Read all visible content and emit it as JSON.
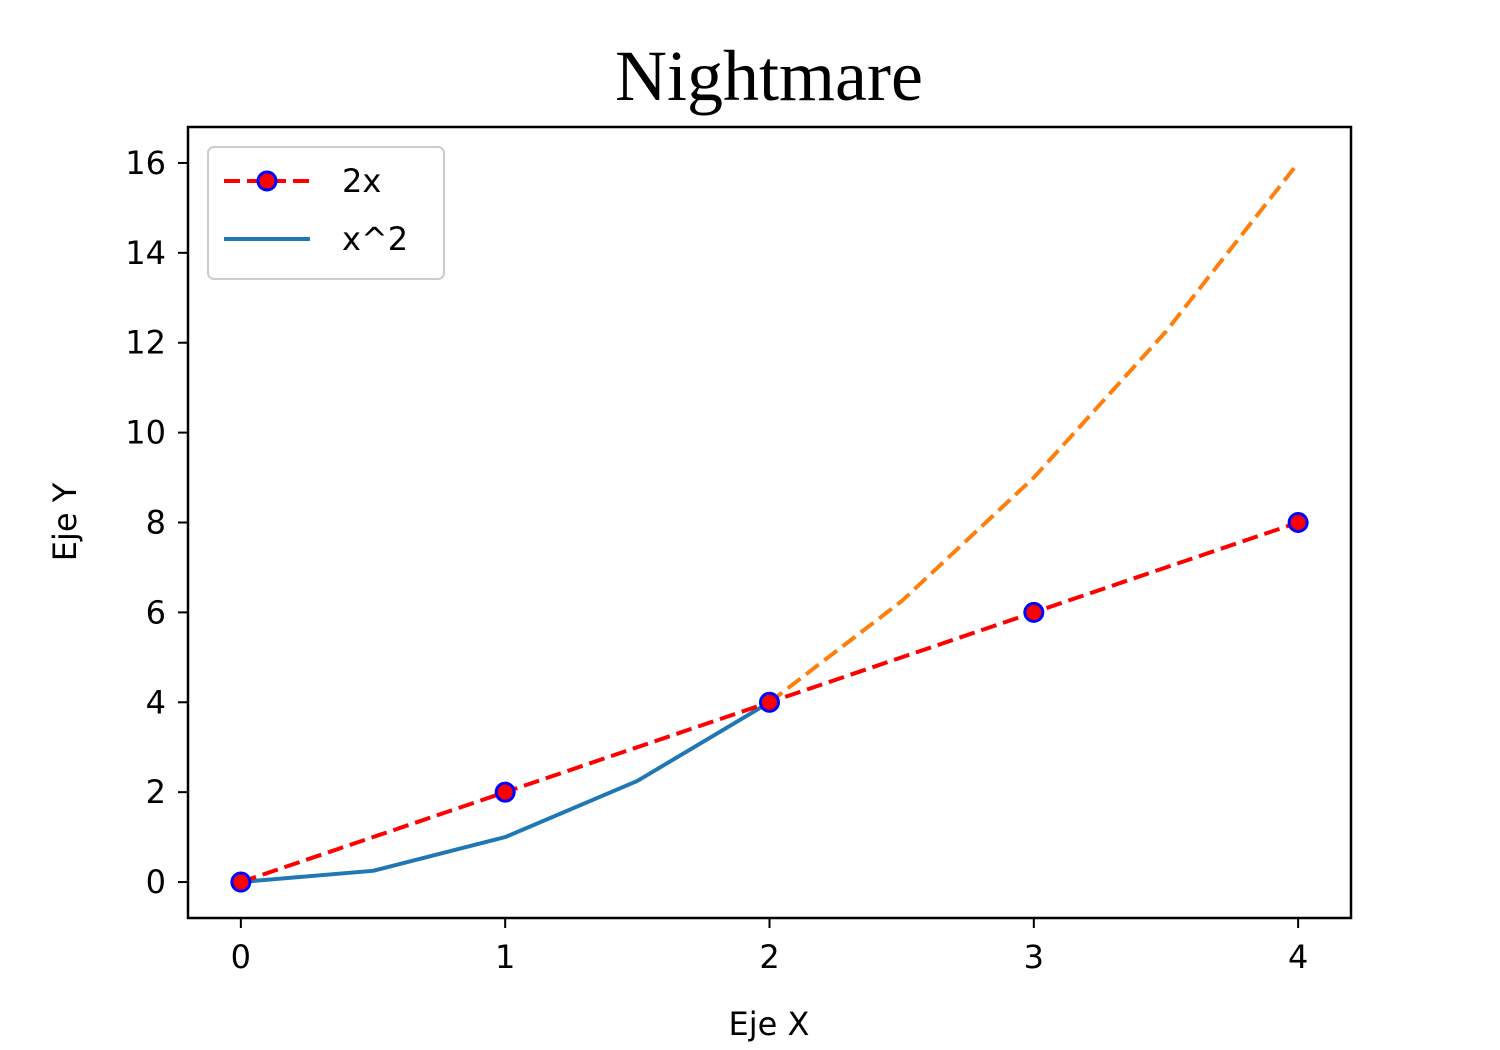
{
  "chart_data": {
    "type": "line",
    "title": "Nightmare",
    "xlabel": "Eje X",
    "ylabel": "Eje Y",
    "xlim": [
      -0.2,
      4.2
    ],
    "ylim": [
      -0.8,
      16.8
    ],
    "xticks": [
      0,
      1,
      2,
      3,
      4
    ],
    "yticks": [
      0,
      2,
      4,
      6,
      8,
      10,
      12,
      14,
      16
    ],
    "grid": false,
    "legend_position": "upper-left",
    "series": [
      {
        "name": "2x",
        "style": "dashed",
        "marker": "circle",
        "color": "#ff0000",
        "marker_edge_color": "#0000ff",
        "x": [
          0,
          1,
          2,
          3,
          4
        ],
        "y": [
          0,
          2,
          4,
          6,
          8
        ]
      },
      {
        "name": "x^2",
        "style": "solid",
        "color": "#1f77b4",
        "x": [
          0,
          0.5,
          1,
          1.5,
          2
        ],
        "y": [
          0,
          0.25,
          1,
          2.25,
          4
        ]
      },
      {
        "style": "dashed",
        "color": "#ff7f0e",
        "x": [
          2,
          2.5,
          3,
          3.5,
          4
        ],
        "y": [
          4,
          6.25,
          9,
          12.25,
          16
        ]
      }
    ]
  }
}
